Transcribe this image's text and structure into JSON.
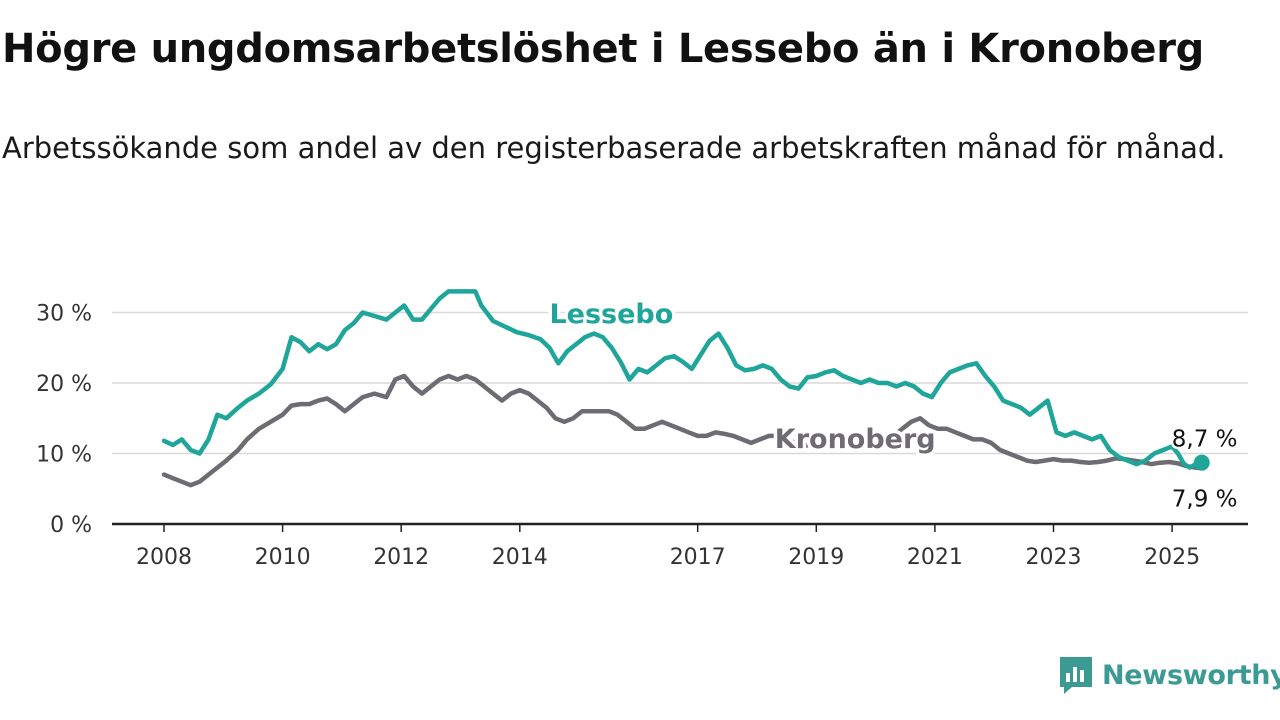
{
  "chart_data": {
    "type": "line",
    "title": "Högre ungdomsarbetslöshet i Lessebo än i Kronoberg",
    "subtitle": "Arbetssökande som andel av den registerbaserade arbetskraften månad för månad.",
    "x_range": [
      2008.0,
      2025.5
    ],
    "x_ticks": [
      2008,
      2010,
      2012,
      2014,
      2017,
      2019,
      2021,
      2023,
      2025
    ],
    "y_ticks": [
      0,
      10,
      20,
      30
    ],
    "y_tick_labels": [
      "0 %",
      "10 %",
      "20 %",
      "30 %"
    ],
    "ylim": [
      0,
      30
    ],
    "grid": true,
    "series": [
      {
        "name": "Lessebo",
        "color": "#1fa59a",
        "label_position": {
          "x": 2014.5,
          "y": 28.5
        },
        "end_label": "8,7 %",
        "points": [
          [
            2008.0,
            11.8
          ],
          [
            2008.15,
            11.2
          ],
          [
            2008.3,
            12.0
          ],
          [
            2008.45,
            10.5
          ],
          [
            2008.6,
            10.0
          ],
          [
            2008.75,
            12.0
          ],
          [
            2008.9,
            15.5
          ],
          [
            2009.05,
            15.0
          ],
          [
            2009.25,
            16.5
          ],
          [
            2009.4,
            17.5
          ],
          [
            2009.6,
            18.5
          ],
          [
            2009.8,
            19.8
          ],
          [
            2010.0,
            22.0
          ],
          [
            2010.15,
            26.5
          ],
          [
            2010.3,
            25.8
          ],
          [
            2010.45,
            24.5
          ],
          [
            2010.6,
            25.5
          ],
          [
            2010.75,
            24.8
          ],
          [
            2010.9,
            25.5
          ],
          [
            2011.05,
            27.5
          ],
          [
            2011.2,
            28.5
          ],
          [
            2011.35,
            30.0
          ],
          [
            2011.55,
            29.5
          ],
          [
            2011.75,
            29.0
          ],
          [
            2011.9,
            30.0
          ],
          [
            2012.05,
            31.0
          ],
          [
            2012.2,
            29.0
          ],
          [
            2012.35,
            29.0
          ],
          [
            2012.5,
            30.5
          ],
          [
            2012.65,
            32.0
          ],
          [
            2012.8,
            33.0
          ],
          [
            2012.95,
            33.0
          ],
          [
            2013.1,
            33.0
          ],
          [
            2013.25,
            33.0
          ],
          [
            2013.35,
            31.0
          ],
          [
            2013.55,
            28.8
          ],
          [
            2013.75,
            28.0
          ],
          [
            2013.95,
            27.2
          ],
          [
            2014.15,
            26.8
          ],
          [
            2014.35,
            26.2
          ],
          [
            2014.5,
            25.0
          ],
          [
            2014.65,
            22.8
          ],
          [
            2014.8,
            24.5
          ],
          [
            2014.95,
            25.5
          ],
          [
            2015.1,
            26.5
          ],
          [
            2015.25,
            27.0
          ],
          [
            2015.4,
            26.5
          ],
          [
            2015.55,
            25.0
          ],
          [
            2015.7,
            23.0
          ],
          [
            2015.85,
            20.5
          ],
          [
            2016.0,
            22.0
          ],
          [
            2016.15,
            21.5
          ],
          [
            2016.3,
            22.5
          ],
          [
            2016.45,
            23.5
          ],
          [
            2016.6,
            23.8
          ],
          [
            2016.75,
            23.0
          ],
          [
            2016.9,
            22.0
          ],
          [
            2017.05,
            24.0
          ],
          [
            2017.2,
            26.0
          ],
          [
            2017.35,
            27.0
          ],
          [
            2017.5,
            25.0
          ],
          [
            2017.65,
            22.5
          ],
          [
            2017.8,
            21.8
          ],
          [
            2017.95,
            22.0
          ],
          [
            2018.1,
            22.5
          ],
          [
            2018.25,
            22.0
          ],
          [
            2018.4,
            20.5
          ],
          [
            2018.55,
            19.5
          ],
          [
            2018.7,
            19.2
          ],
          [
            2018.85,
            20.8
          ],
          [
            2019.0,
            21.0
          ],
          [
            2019.15,
            21.5
          ],
          [
            2019.3,
            21.8
          ],
          [
            2019.45,
            21.0
          ],
          [
            2019.6,
            20.5
          ],
          [
            2019.75,
            20.0
          ],
          [
            2019.9,
            20.5
          ],
          [
            2020.05,
            20.0
          ],
          [
            2020.2,
            20.0
          ],
          [
            2020.35,
            19.5
          ],
          [
            2020.5,
            20.0
          ],
          [
            2020.65,
            19.5
          ],
          [
            2020.8,
            18.5
          ],
          [
            2020.95,
            18.0
          ],
          [
            2021.1,
            20.0
          ],
          [
            2021.25,
            21.5
          ],
          [
            2021.4,
            22.0
          ],
          [
            2021.55,
            22.5
          ],
          [
            2021.7,
            22.8
          ],
          [
            2021.85,
            21.0
          ],
          [
            2022.0,
            19.5
          ],
          [
            2022.15,
            17.5
          ],
          [
            2022.3,
            17.0
          ],
          [
            2022.45,
            16.5
          ],
          [
            2022.6,
            15.5
          ],
          [
            2022.75,
            16.5
          ],
          [
            2022.9,
            17.5
          ],
          [
            2023.05,
            13.0
          ],
          [
            2023.2,
            12.5
          ],
          [
            2023.35,
            13.0
          ],
          [
            2023.5,
            12.5
          ],
          [
            2023.65,
            12.0
          ],
          [
            2023.8,
            12.5
          ],
          [
            2023.95,
            10.5
          ],
          [
            2024.1,
            9.5
          ],
          [
            2024.25,
            9.0
          ],
          [
            2024.4,
            8.5
          ],
          [
            2024.55,
            9.0
          ],
          [
            2024.7,
            10.0
          ],
          [
            2024.85,
            10.5
          ],
          [
            2025.0,
            11.0
          ],
          [
            2025.1,
            10.0
          ],
          [
            2025.2,
            8.5
          ],
          [
            2025.3,
            8.0
          ],
          [
            2025.4,
            8.5
          ],
          [
            2025.5,
            8.7
          ]
        ]
      },
      {
        "name": "Kronoberg",
        "color": "#6e6b73",
        "label_position": {
          "x": 2018.3,
          "y": 10.8
        },
        "end_label": "7,9 %",
        "points": [
          [
            2008.0,
            7.0
          ],
          [
            2008.15,
            6.5
          ],
          [
            2008.3,
            6.0
          ],
          [
            2008.45,
            5.5
          ],
          [
            2008.6,
            6.0
          ],
          [
            2008.75,
            7.0
          ],
          [
            2008.9,
            8.0
          ],
          [
            2009.05,
            9.0
          ],
          [
            2009.25,
            10.5
          ],
          [
            2009.4,
            12.0
          ],
          [
            2009.6,
            13.5
          ],
          [
            2009.8,
            14.5
          ],
          [
            2010.0,
            15.5
          ],
          [
            2010.15,
            16.8
          ],
          [
            2010.3,
            17.0
          ],
          [
            2010.45,
            17.0
          ],
          [
            2010.6,
            17.5
          ],
          [
            2010.75,
            17.8
          ],
          [
            2010.9,
            17.0
          ],
          [
            2011.05,
            16.0
          ],
          [
            2011.2,
            17.0
          ],
          [
            2011.35,
            18.0
          ],
          [
            2011.55,
            18.5
          ],
          [
            2011.75,
            18.0
          ],
          [
            2011.9,
            20.5
          ],
          [
            2012.05,
            21.0
          ],
          [
            2012.2,
            19.5
          ],
          [
            2012.35,
            18.5
          ],
          [
            2012.5,
            19.5
          ],
          [
            2012.65,
            20.5
          ],
          [
            2012.8,
            21.0
          ],
          [
            2012.95,
            20.5
          ],
          [
            2013.1,
            21.0
          ],
          [
            2013.25,
            20.5
          ],
          [
            2013.4,
            19.5
          ],
          [
            2013.55,
            18.5
          ],
          [
            2013.7,
            17.5
          ],
          [
            2013.85,
            18.5
          ],
          [
            2014.0,
            19.0
          ],
          [
            2014.15,
            18.5
          ],
          [
            2014.3,
            17.5
          ],
          [
            2014.45,
            16.5
          ],
          [
            2014.6,
            15.0
          ],
          [
            2014.75,
            14.5
          ],
          [
            2014.9,
            15.0
          ],
          [
            2015.05,
            16.0
          ],
          [
            2015.2,
            16.0
          ],
          [
            2015.35,
            16.0
          ],
          [
            2015.5,
            16.0
          ],
          [
            2015.65,
            15.5
          ],
          [
            2015.8,
            14.5
          ],
          [
            2015.95,
            13.5
          ],
          [
            2016.1,
            13.5
          ],
          [
            2016.25,
            14.0
          ],
          [
            2016.4,
            14.5
          ],
          [
            2016.55,
            14.0
          ],
          [
            2016.7,
            13.5
          ],
          [
            2016.85,
            13.0
          ],
          [
            2017.0,
            12.5
          ],
          [
            2017.15,
            12.5
          ],
          [
            2017.3,
            13.0
          ],
          [
            2017.45,
            12.8
          ],
          [
            2017.6,
            12.5
          ],
          [
            2017.75,
            12.0
          ],
          [
            2017.9,
            11.5
          ],
          [
            2018.05,
            12.0
          ],
          [
            2018.2,
            12.5
          ],
          [
            2018.35,
            12.5
          ],
          [
            2018.5,
            12.0
          ],
          [
            2018.65,
            11.5
          ],
          [
            2018.8,
            11.0
          ],
          [
            2018.95,
            11.5
          ],
          [
            2019.1,
            11.8
          ],
          [
            2019.25,
            12.0
          ],
          [
            2019.4,
            11.5
          ],
          [
            2019.55,
            11.0
          ],
          [
            2019.7,
            11.0
          ],
          [
            2019.85,
            11.2
          ],
          [
            2020.0,
            11.5
          ],
          [
            2020.15,
            12.0
          ],
          [
            2020.3,
            12.5
          ],
          [
            2020.45,
            13.5
          ],
          [
            2020.6,
            14.5
          ],
          [
            2020.75,
            15.0
          ],
          [
            2020.9,
            14.0
          ],
          [
            2021.05,
            13.5
          ],
          [
            2021.2,
            13.5
          ],
          [
            2021.35,
            13.0
          ],
          [
            2021.5,
            12.5
          ],
          [
            2021.65,
            12.0
          ],
          [
            2021.8,
            12.0
          ],
          [
            2021.95,
            11.5
          ],
          [
            2022.1,
            10.5
          ],
          [
            2022.25,
            10.0
          ],
          [
            2022.4,
            9.5
          ],
          [
            2022.55,
            9.0
          ],
          [
            2022.7,
            8.8
          ],
          [
            2022.85,
            9.0
          ],
          [
            2023.0,
            9.2
          ],
          [
            2023.15,
            9.0
          ],
          [
            2023.3,
            9.0
          ],
          [
            2023.45,
            8.8
          ],
          [
            2023.6,
            8.7
          ],
          [
            2023.75,
            8.8
          ],
          [
            2023.9,
            9.0
          ],
          [
            2024.05,
            9.3
          ],
          [
            2024.2,
            9.2
          ],
          [
            2024.35,
            9.0
          ],
          [
            2024.5,
            8.8
          ],
          [
            2024.65,
            8.5
          ],
          [
            2024.8,
            8.7
          ],
          [
            2024.95,
            8.8
          ],
          [
            2025.1,
            8.6
          ],
          [
            2025.25,
            8.2
          ],
          [
            2025.4,
            8.0
          ],
          [
            2025.5,
            7.9
          ]
        ]
      }
    ]
  },
  "brand": {
    "name": "Newsworthy",
    "color": "#3c9a95"
  }
}
